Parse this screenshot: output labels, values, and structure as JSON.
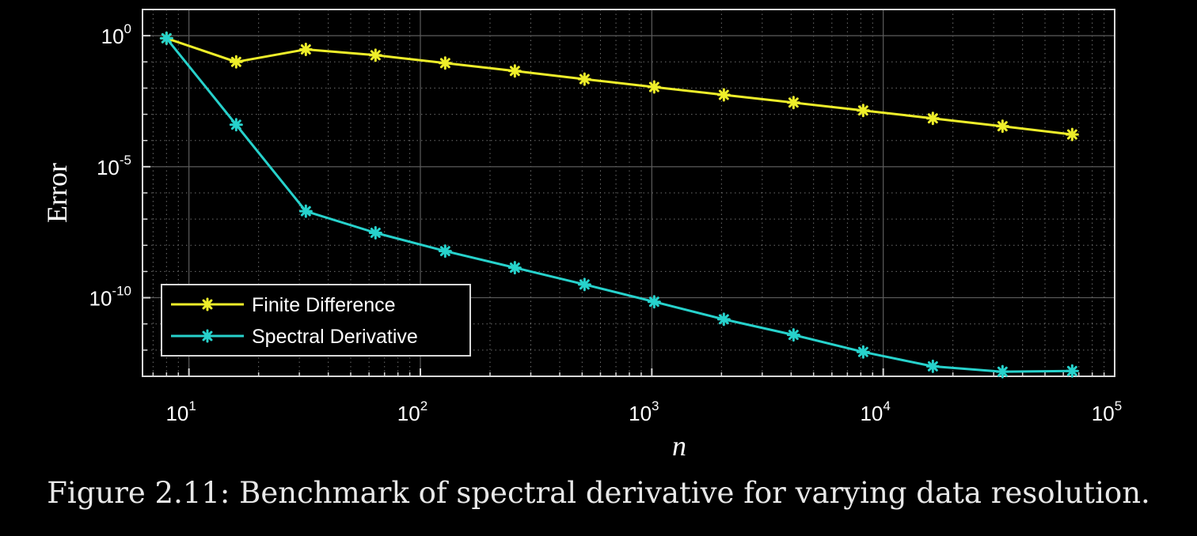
{
  "caption": "Figure 2.11: Benchmark of spectral derivative for varying data resolution.",
  "chart_data": {
    "type": "line",
    "xlabel": "n",
    "ylabel": "Error",
    "xscale": "log",
    "yscale": "log",
    "xlim": [
      6.3,
      100000
    ],
    "ylim": [
      1e-13,
      10
    ],
    "x_ticks": [
      {
        "base": "10",
        "exp": "1"
      },
      {
        "base": "10",
        "exp": "2"
      },
      {
        "base": "10",
        "exp": "3"
      },
      {
        "base": "10",
        "exp": "4"
      },
      {
        "base": "10",
        "exp": "5"
      }
    ],
    "y_ticks": [
      {
        "base": "10",
        "exp": "0"
      },
      {
        "base": "10",
        "exp": "-5"
      },
      {
        "base": "10",
        "exp": "-10"
      }
    ],
    "grid": true,
    "minor_grid": true,
    "legend_position": "bottom-left",
    "background": "#000000",
    "axis_color": "#d8d8d8",
    "series": [
      {
        "name": "Finite Difference",
        "color": "#eeee2a",
        "marker": "asterisk",
        "x": [
          8,
          16,
          32,
          64,
          128,
          256,
          512,
          1024,
          2048,
          4096,
          8192,
          16384,
          32768,
          65536
        ],
        "y": [
          0.8,
          0.1,
          0.3,
          0.18,
          0.09,
          0.045,
          0.022,
          0.011,
          0.0055,
          0.0028,
          0.0014,
          0.0007,
          0.00035,
          0.00017
        ]
      },
      {
        "name": "Spectral Derivative",
        "color": "#27d2cc",
        "marker": "asterisk",
        "x": [
          8,
          16,
          32,
          64,
          128,
          256,
          512,
          1024,
          2048,
          4096,
          8192,
          16384,
          32768,
          65536
        ],
        "y": [
          0.8,
          0.0004,
          2e-07,
          3e-08,
          6e-09,
          1.4e-09,
          3.2e-10,
          7e-11,
          1.5e-11,
          3.8e-12,
          8.5e-13,
          2.4e-13,
          1.5e-13,
          1.6e-13
        ]
      }
    ]
  }
}
